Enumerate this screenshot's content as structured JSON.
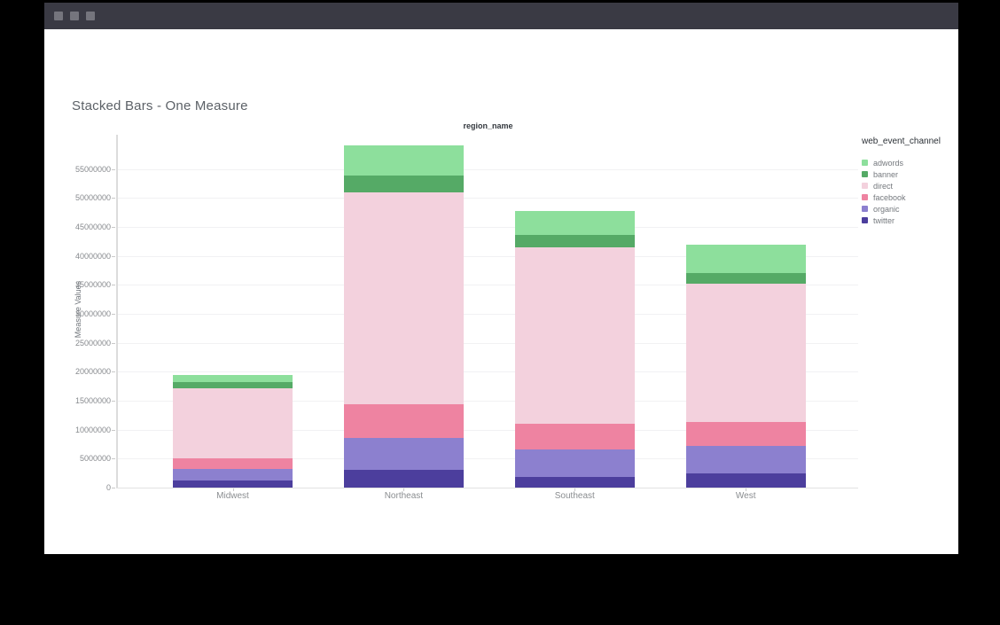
{
  "window": {
    "titlebar_color": "#3a3a44",
    "controls": [
      "window-button",
      "window-button",
      "window-button"
    ]
  },
  "chart": {
    "title": "Stacked Bars - One Measure",
    "top_axis_title": "region_name",
    "y_axis_title": "Measure Values",
    "legend_title": "web_event_channel"
  },
  "chart_data": {
    "type": "bar",
    "stacked": true,
    "title": "Stacked Bars - One Measure",
    "xlabel": "region_name",
    "ylabel": "Measure Values",
    "categories": [
      "Midwest",
      "Northeast",
      "Southeast",
      "West"
    ],
    "series": [
      {
        "name": "adwords",
        "color": "#8ddf9c",
        "values": [
          1300000,
          5300000,
          4200000,
          5000000
        ]
      },
      {
        "name": "banner",
        "color": "#55aa66",
        "values": [
          1100000,
          2900000,
          2200000,
          1800000
        ]
      },
      {
        "name": "direct",
        "color": "#f3d1dd",
        "values": [
          12000000,
          36500000,
          30400000,
          23800000
        ]
      },
      {
        "name": "facebook",
        "color": "#ee83a1",
        "values": [
          1900000,
          5900000,
          4400000,
          4200000
        ]
      },
      {
        "name": "organic",
        "color": "#8c80cf",
        "values": [
          2000000,
          5500000,
          4700000,
          4800000
        ]
      },
      {
        "name": "twitter",
        "color": "#4c3e9d",
        "values": [
          1200000,
          3000000,
          1900000,
          2400000
        ]
      }
    ],
    "stack_order_bottom_to_top": [
      "twitter",
      "organic",
      "facebook",
      "direct",
      "banner",
      "adwords"
    ],
    "totals": [
      19500000,
      59100000,
      47800000,
      42000000
    ],
    "y_ticks": [
      0,
      5000000,
      10000000,
      15000000,
      20000000,
      25000000,
      30000000,
      35000000,
      40000000,
      45000000,
      50000000,
      55000000
    ],
    "ylim": [
      0,
      60900000
    ],
    "grid": true,
    "legend_position": "right",
    "legend_title": "web_event_channel"
  }
}
